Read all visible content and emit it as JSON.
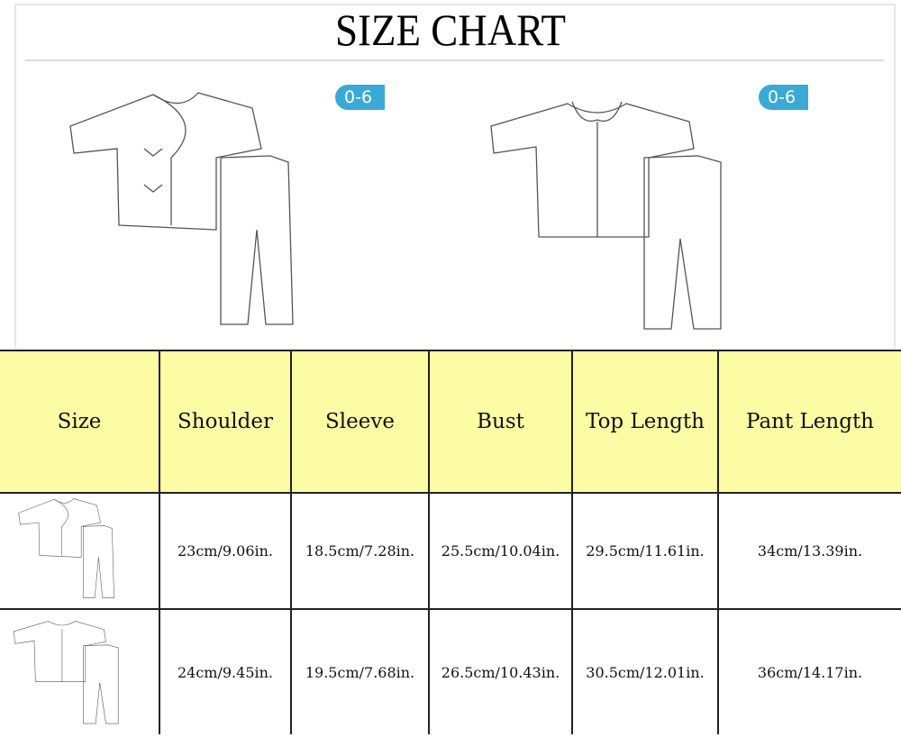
{
  "title": "SIZE CHART",
  "badges": [
    "0-6",
    "0-6"
  ],
  "table": {
    "headers": [
      "Size",
      "Shoulder",
      "Sleeve",
      "Bust",
      "Top Length",
      "Pant Length"
    ],
    "rows": [
      {
        "image": "side-tie-kimono-set",
        "values": [
          "23cm/9.06in.",
          "18.5cm/7.28in.",
          "25.5cm/10.04in.",
          "29.5cm/11.61in.",
          "34cm/13.39in."
        ]
      },
      {
        "image": "collared-button-set",
        "values": [
          "24cm/9.45in.",
          "19.5cm/7.68in.",
          "26.5cm/10.43in.",
          "30.5cm/12.01in.",
          "36cm/14.17in."
        ]
      }
    ]
  },
  "colors": {
    "header_bg": "#fcfca4",
    "badge": "#3aa9d6",
    "border": "#222222"
  }
}
